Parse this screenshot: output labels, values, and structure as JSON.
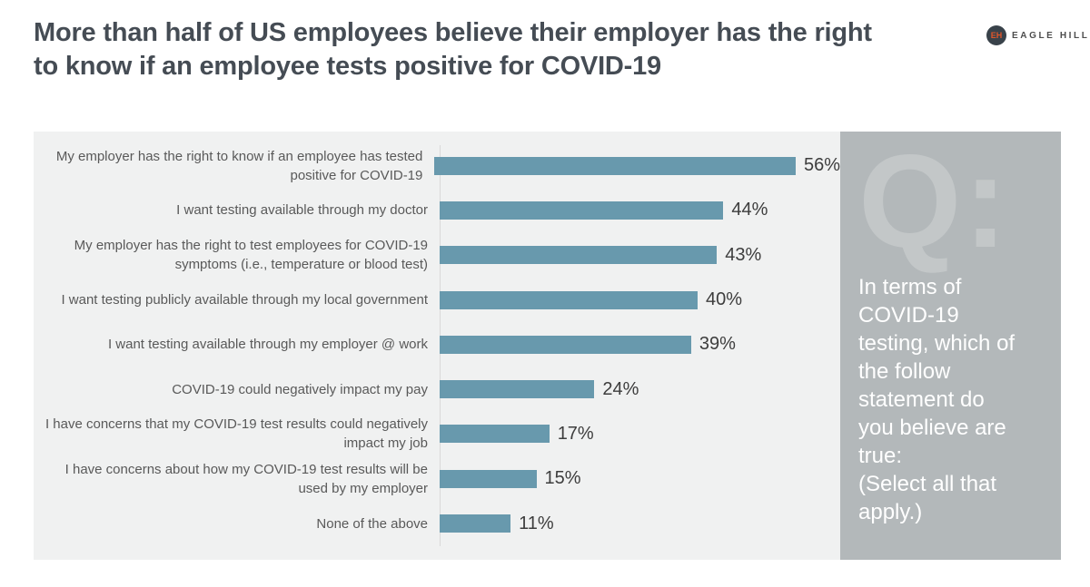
{
  "header": {
    "title": "More than half of US employees believe their employer has the right\nto know if an employee tests positive for COVID-19",
    "logo": {
      "mark": "EH",
      "text": "EAGLE HILL"
    }
  },
  "sidebar": {
    "watermark": "Q:",
    "question": "In terms of\nCOVID-19\ntesting, which of\nthe follow\nstatement do\nyou believe are\ntrue:\n(Select all that\napply.)"
  },
  "chart_data": {
    "type": "bar",
    "orientation": "horizontal",
    "title": "More than half of US employees believe their employer has the right to know if an employee tests positive for COVID-19",
    "categories": [
      "My employer has the right to know if an employee has tested positive for COVID-19",
      "I want testing available through my doctor",
      "My employer has the right to test employees for COVID-19 symptoms (i.e., temperature or blood test)",
      "I want testing publicly available through my local government",
      "I want testing available through my employer @ work",
      "COVID-19 could negatively impact my pay",
      "I have concerns that my COVID-19 test results could negatively impact my job",
      "I have concerns about how my COVID-19 test results will be used by my employer",
      "None of the above"
    ],
    "values": [
      56,
      44,
      43,
      40,
      39,
      24,
      17,
      15,
      11
    ],
    "value_labels": [
      "56%",
      "44%",
      "43%",
      "40%",
      "39%",
      "24%",
      "17%",
      "15%",
      "11%"
    ],
    "xlabel": "",
    "ylabel": "",
    "xlim": [
      0,
      63
    ],
    "grid": false,
    "legend": "none",
    "bar_color": "#6899ad"
  },
  "colors": {
    "bar": "#6899ad",
    "panel_bg": "#f0f1f1",
    "sidebar_bg": "#b3b8ba",
    "watermark": "#c3c7c8",
    "axis": "#d9d9d9",
    "logo_orange": "#e0562a",
    "logo_dark": "#39424a"
  }
}
